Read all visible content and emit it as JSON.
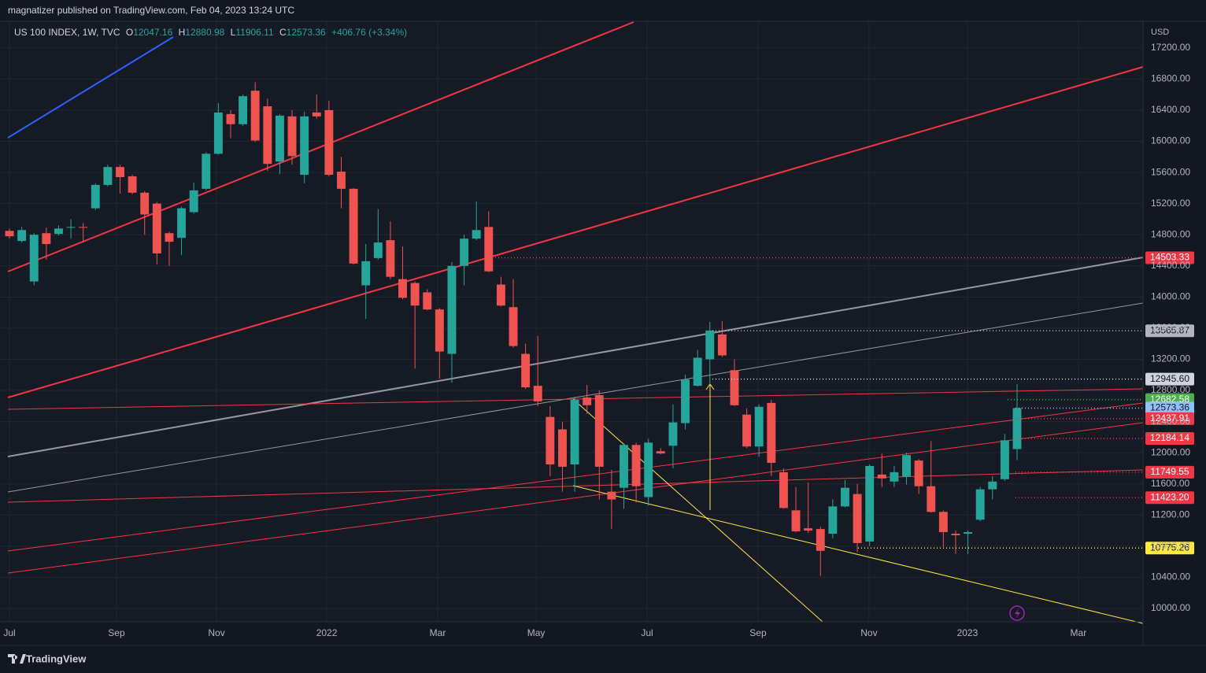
{
  "header": "magnatizer published on TradingView.com, Feb 04, 2023 13:24 UTC",
  "footer": "TradingView",
  "chart_data": {
    "type": "candlestick",
    "legend": {
      "symbol": "US 100 INDEX, 1W, TVC",
      "fields": [
        {
          "key": "O",
          "value": "12047.16"
        },
        {
          "key": "H",
          "value": "12880.98"
        },
        {
          "key": "L",
          "value": "11906.11"
        },
        {
          "key": "C",
          "value": "12573.36"
        }
      ],
      "change": "+406.76 (+3.34%)"
    },
    "currency": "USD",
    "up_color": "#26a69a",
    "down_color": "#ef5350",
    "grid": true,
    "xlim": [
      -0.77,
      92.25
    ],
    "xticks": [
      {
        "value": 0,
        "label": "Jul"
      },
      {
        "value": 8.71,
        "label": "Sep"
      },
      {
        "value": 16.85,
        "label": "Nov"
      },
      {
        "value": 25.82,
        "label": "2022"
      },
      {
        "value": 34.85,
        "label": "Mar"
      },
      {
        "value": 42.86,
        "label": "May"
      },
      {
        "value": 51.89,
        "label": "Jul"
      },
      {
        "value": 60.92,
        "label": "Sep"
      },
      {
        "value": 69.95,
        "label": "Nov"
      },
      {
        "value": 77.96,
        "label": "2023"
      },
      {
        "value": 86.99,
        "label": "Mar"
      }
    ],
    "ylim": [
      9828,
      17542
    ],
    "yticks": [
      {
        "value": 10000,
        "label": "10000.00"
      },
      {
        "value": 10400,
        "label": "10400.00"
      },
      {
        "value": 10800,
        "label": "10800.00"
      },
      {
        "value": 11200,
        "label": "11200.00"
      },
      {
        "value": 11600,
        "label": "11600.00"
      },
      {
        "value": 12000,
        "label": "12000.00"
      },
      {
        "value": 12400,
        "label": "12400.00"
      },
      {
        "value": 12800,
        "label": "12800.00"
      },
      {
        "value": 13200,
        "label": "13200.00"
      },
      {
        "value": 13600,
        "label": "13600.00"
      },
      {
        "value": 14000,
        "label": "14000.00"
      },
      {
        "value": 14400,
        "label": "14400.00"
      },
      {
        "value": 14800,
        "label": "14800.00"
      },
      {
        "value": 15200,
        "label": "15200.00"
      },
      {
        "value": 15600,
        "label": "15600.00"
      },
      {
        "value": 16000,
        "label": "16000.00"
      },
      {
        "value": 16400,
        "label": "16400.00"
      },
      {
        "value": 16800,
        "label": "16800.00"
      },
      {
        "value": 17200,
        "label": "17200.00"
      }
    ],
    "price_labels": [
      {
        "value": 14503.33,
        "color": "#f23645",
        "text_color": "#ffffff"
      },
      {
        "value": 13565.87,
        "color": "#b2b5be",
        "text_color": "#131722"
      },
      {
        "value": 12945.6,
        "label": "12945.60",
        "color": "#d1d4dc",
        "text_color": "#131722"
      },
      {
        "value": 12682.58,
        "color": "#4caf50",
        "text_color": "#ffffff"
      },
      {
        "value": 12573.36,
        "color": "#90bff9",
        "text_color": "#131722"
      },
      {
        "value": 12437.91,
        "color": "#f23645",
        "text_color": "#ffffff"
      },
      {
        "value": 12184.14,
        "color": "#f23645",
        "text_color": "#ffffff"
      },
      {
        "value": 11749.55,
        "color": "#f23645",
        "text_color": "#ffffff"
      },
      {
        "value": 11423.2,
        "label": "11423.20",
        "color": "#f23645",
        "text_color": "#ffffff"
      },
      {
        "value": 10775.26,
        "color": "#ffeb3b",
        "text_color": "#131722"
      }
    ],
    "open": [
      14850,
      14720,
      14200,
      14820,
      14810,
      14890,
      14900,
      15140,
      15440,
      15670,
      15550,
      15340,
      15200,
      14820,
      14760,
      15090,
      15390,
      15840,
      16350,
      16220,
      16650,
      16450,
      15740,
      16320,
      15570,
      16370,
      16400,
      15610,
      15390,
      14150,
      14500,
      14730,
      14230,
      14180,
      14060,
      13840,
      13270,
      14400,
      14750,
      14900,
      14160,
      13870,
      13270,
      12860,
      12460,
      12300,
      11850,
      12710,
      12740,
      11500,
      11550,
      12100,
      11430,
      12020,
      12090,
      12380,
      12860,
      13200,
      13520,
      13060,
      12490,
      12080,
      12640,
      11750,
      11260,
      11030,
      11020,
      10960,
      11310,
      11470,
      10860,
      11720,
      11630,
      11690,
      11900,
      11570,
      11240,
      10960,
      10960,
      11140,
      11530,
      11660,
      12047.16
    ],
    "high": [
      14880,
      14900,
      14820,
      14890,
      14920,
      15000,
      14950,
      15460,
      15700,
      15700,
      15570,
      15360,
      15220,
      14840,
      15160,
      15470,
      15860,
      16490,
      16400,
      16600,
      16760,
      16550,
      16350,
      16400,
      16380,
      16600,
      16520,
      15800,
      15400,
      14680,
      15130,
      14970,
      14650,
      14200,
      14100,
      13860,
      14450,
      14800,
      15230,
      15100,
      14260,
      14230,
      13400,
      13500,
      12600,
      12400,
      12720,
      12870,
      12800,
      11780,
      12120,
      12130,
      12180,
      12060,
      12620,
      13000,
      13320,
      13680,
      13690,
      13200,
      12570,
      12620,
      12680,
      11800,
      11560,
      11620,
      11050,
      11400,
      11650,
      11600,
      11850,
      11990,
      11830,
      12000,
      11920,
      12150,
      11260,
      11000,
      11000,
      11560,
      11700,
      12240,
      12880.98
    ],
    "low": [
      14750,
      14700,
      14150,
      14480,
      14790,
      14750,
      14700,
      15120,
      15420,
      15330,
      15320,
      14800,
      14420,
      14400,
      14540,
      15070,
      15370,
      15830,
      16040,
      16200,
      15990,
      15620,
      15580,
      15700,
      15460,
      16290,
      15550,
      15140,
      14420,
      13720,
      14480,
      14230,
      13970,
      13080,
      13830,
      12950,
      12900,
      14150,
      14730,
      14320,
      13880,
      13350,
      12820,
      12600,
      11700,
      11500,
      11500,
      12500,
      11400,
      11020,
      11280,
      11360,
      11320,
      11980,
      11800,
      12300,
      12850,
      12880,
      13230,
      12600,
      12060,
      11950,
      11700,
      11280,
      10980,
      10970,
      10420,
      10900,
      11300,
      10720,
      10800,
      11560,
      11560,
      11590,
      11470,
      11230,
      10790,
      10700,
      10700,
      11120,
      11400,
      11640,
      11906.11
    ],
    "close": [
      14780,
      14860,
      14800,
      14680,
      14880,
      14900,
      14890,
      15440,
      15670,
      15540,
      15340,
      15060,
      14560,
      14710,
      15140,
      15370,
      15840,
      16370,
      16220,
      16580,
      16010,
      15710,
      16330,
      15810,
      16320,
      16320,
      15570,
      15390,
      14430,
      14460,
      14700,
      14260,
      13990,
      13890,
      13840,
      13300,
      14400,
      14750,
      14860,
      14330,
      13890,
      13370,
      12840,
      12660,
      11850,
      11820,
      12680,
      12610,
      11820,
      11400,
      12100,
      11570,
      12130,
      11990,
      12390,
      12940,
      13220,
      13570,
      13250,
      12610,
      12080,
      12590,
      11870,
      11290,
      10990,
      11000,
      10740,
      11310,
      11550,
      10840,
      11830,
      11670,
      11750,
      11970,
      11570,
      11240,
      10980,
      10940,
      10980,
      11530,
      11630,
      12160,
      12573.36
    ]
  }
}
